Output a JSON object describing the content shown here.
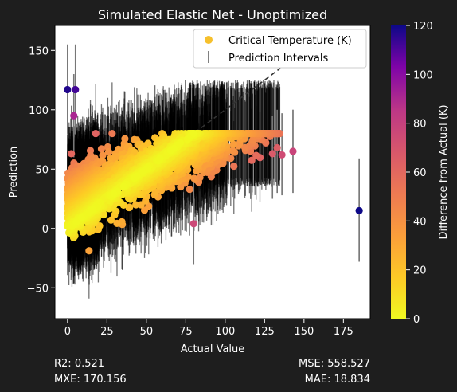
{
  "chart_data": {
    "type": "scatter",
    "title": "Simulated Elastic Net - Unoptimized",
    "xlabel": "Actual Value",
    "ylabel": "Prediction",
    "xlim": [
      -8,
      192
    ],
    "ylim": [
      -76,
      171
    ],
    "xticks": [
      0,
      25,
      50,
      75,
      100,
      125,
      150,
      175
    ],
    "yticks": [
      -50,
      0,
      50,
      100,
      150
    ],
    "legend": {
      "placement": "top-right",
      "entries": [
        {
          "label": "Critical Temperature (K)",
          "marker": "circle",
          "color": "#f6c02c"
        },
        {
          "label": "Prediction Intervals",
          "marker": "vline",
          "color": "#808080"
        }
      ]
    },
    "colorbar": {
      "label": "Difference from Actual (K)",
      "range": [
        0,
        120
      ],
      "ticks": [
        0,
        20,
        40,
        60,
        80,
        100,
        120
      ],
      "colormap": "plasma_r"
    },
    "reference_line": {
      "style": "dashed",
      "color": "#333333",
      "x": [
        0,
        135
      ],
      "y": [
        0,
        135
      ]
    },
    "outliers": [
      {
        "x": 0,
        "y": 117,
        "lo": 80,
        "hi": 155
      },
      {
        "x": 5,
        "y": 117,
        "lo": 80,
        "hi": 155
      },
      {
        "x": 4,
        "y": 95,
        "lo": 60,
        "hi": 130
      },
      {
        "x": 80,
        "y": 4,
        "lo": -30,
        "hi": 40
      },
      {
        "x": 143,
        "y": 65,
        "lo": 30,
        "hi": 100
      },
      {
        "x": 130,
        "y": 63,
        "lo": 25,
        "hi": 95
      },
      {
        "x": 133,
        "y": 68,
        "lo": 30,
        "hi": 100
      },
      {
        "x": 136,
        "y": 62,
        "lo": 28,
        "hi": 97
      },
      {
        "x": 185,
        "y": 15,
        "lo": -28,
        "hi": 59
      }
    ],
    "bulk_summary": {
      "n_points": 2200,
      "x_range": [
        0,
        135
      ],
      "interval_halfwidth": 37
    }
  },
  "metrics": {
    "r2": "R2: 0.521",
    "mxe": "MXE: 170.156",
    "mse": "MSE: 558.527",
    "mae": "MAE: 18.834"
  }
}
